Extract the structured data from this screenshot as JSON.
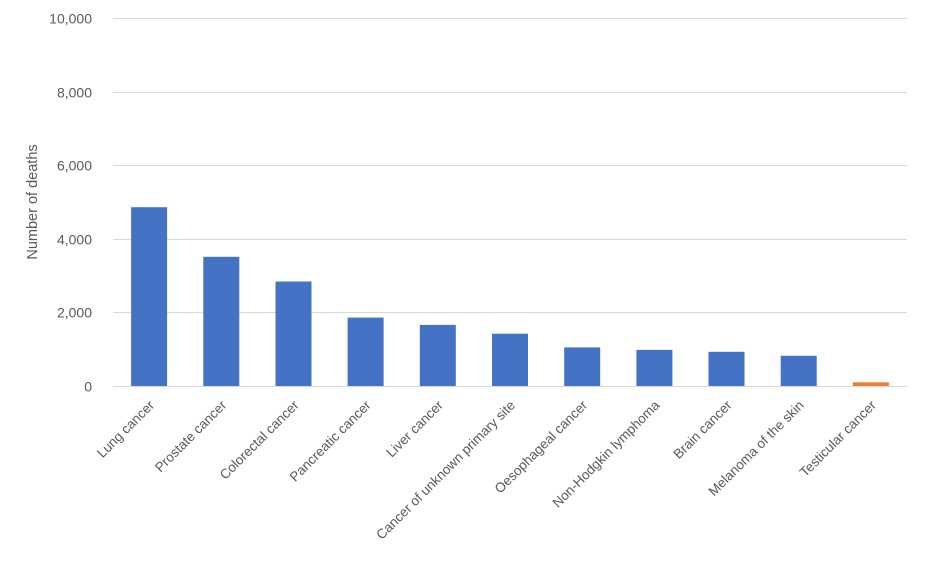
{
  "chart_data": {
    "type": "bar",
    "title": "",
    "xlabel": "",
    "ylabel": "Number of deaths",
    "ylim": [
      0,
      10000
    ],
    "yticks": [
      0,
      2000,
      4000,
      6000,
      8000,
      10000
    ],
    "ytick_labels": [
      "0",
      "2,000",
      "4,000",
      "6,000",
      "8,000",
      "10,000"
    ],
    "grid": true,
    "legend": "none",
    "categories": [
      "Lung cancer",
      "Prostate cancer",
      "Colorectal cancer",
      "Pancreatic cancer",
      "Liver cancer",
      "Cancer of unknown primary site",
      "Oesophageal cancer",
      "Non-Hodgkin lymphoma",
      "Brain cancer",
      "Melanoma of the skin",
      "Testicular cancer"
    ],
    "values": [
      4860,
      3510,
      2840,
      1860,
      1660,
      1420,
      1050,
      980,
      930,
      820,
      100
    ],
    "bar_colors": [
      "#4472c4",
      "#4472c4",
      "#4472c4",
      "#4472c4",
      "#4472c4",
      "#4472c4",
      "#4472c4",
      "#4472c4",
      "#4472c4",
      "#4472c4",
      "#ed7d31"
    ]
  }
}
